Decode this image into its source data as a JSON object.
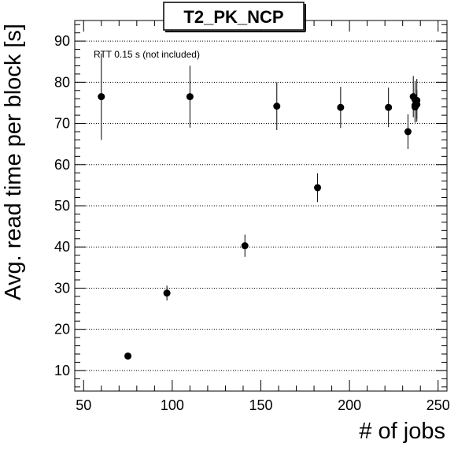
{
  "chart_data": {
    "type": "scatter",
    "title": "T2_PK_NCP",
    "xlabel": "# of jobs",
    "ylabel": "Avg. read time per block [s]",
    "annotation": "RTT 0.15 s (not included)",
    "xlim": [
      45,
      255
    ],
    "ylim": [
      5,
      95
    ],
    "xticks": [
      50,
      100,
      150,
      200,
      250
    ],
    "yticks": [
      10,
      20,
      30,
      40,
      50,
      60,
      70,
      80,
      90
    ],
    "grid": "horizontal dotted",
    "series": [
      {
        "points": [
          {
            "x": 60,
            "y": 76.5,
            "err": 10.5
          },
          {
            "x": 75,
            "y": 13.5,
            "err": 0.8
          },
          {
            "x": 97,
            "y": 28.8,
            "err": 1.8
          },
          {
            "x": 110,
            "y": 76.5,
            "err": 7.5
          },
          {
            "x": 141,
            "y": 40.3,
            "err": 2.7
          },
          {
            "x": 159,
            "y": 74.2,
            "err": 5.8
          },
          {
            "x": 182,
            "y": 54.4,
            "err": 3.5
          },
          {
            "x": 195,
            "y": 73.9,
            "err": 5.0
          },
          {
            "x": 222,
            "y": 73.9,
            "err": 4.8
          },
          {
            "x": 233,
            "y": 68.0,
            "err": 4.2
          },
          {
            "x": 236,
            "y": 76.5,
            "err": 5.0
          },
          {
            "x": 237,
            "y": 75.8,
            "err": 4.5
          },
          {
            "x": 237,
            "y": 74.4,
            "err": 4.0
          },
          {
            "x": 237,
            "y": 74.0,
            "err": 3.8
          },
          {
            "x": 238,
            "y": 75.6,
            "err": 5.2
          },
          {
            "x": 238,
            "y": 74.6,
            "err": 3.5
          }
        ]
      }
    ]
  }
}
